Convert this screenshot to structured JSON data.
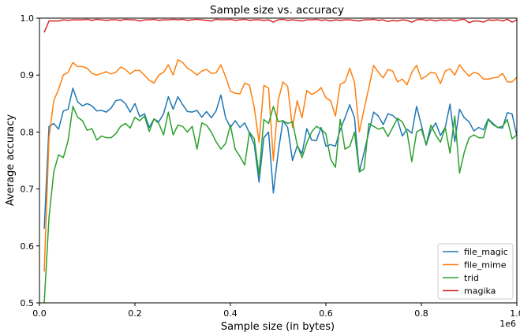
{
  "chart_data": {
    "type": "line",
    "title": "Sample size vs. accuracy",
    "xlabel": "Sample size (in bytes)",
    "ylabel": "Average accuracy",
    "x_offset_label": "1e6",
    "xlim": [
      0,
      1.0
    ],
    "ylim": [
      0.5,
      1.0
    ],
    "x_ticks": [
      0.0,
      0.2,
      0.4,
      0.6,
      0.8,
      1.0
    ],
    "x_tick_labels": [
      "0.0",
      "0.2",
      "0.4",
      "0.6",
      "0.8",
      "1.0"
    ],
    "y_ticks": [
      0.5,
      0.6,
      0.7,
      0.8,
      0.9,
      1.0
    ],
    "y_tick_labels": [
      "0.5",
      "0.6",
      "0.7",
      "0.8",
      "0.9",
      "1.0"
    ],
    "grid": false,
    "legend_position": "bottom-right",
    "x": [
      0.01,
      0.02,
      0.03,
      0.04,
      0.05,
      0.06,
      0.07,
      0.08,
      0.09,
      0.1,
      0.11,
      0.12,
      0.13,
      0.14,
      0.15,
      0.16,
      0.17,
      0.18,
      0.19,
      0.2,
      0.21,
      0.22,
      0.23,
      0.24,
      0.25,
      0.26,
      0.27,
      0.28,
      0.29,
      0.3,
      0.31,
      0.32,
      0.33,
      0.34,
      0.35,
      0.36,
      0.37,
      0.38,
      0.39,
      0.4,
      0.41,
      0.42,
      0.43,
      0.44,
      0.45,
      0.46,
      0.47,
      0.48,
      0.49,
      0.5,
      0.51,
      0.52,
      0.53,
      0.54,
      0.55,
      0.56,
      0.57,
      0.58,
      0.59,
      0.6,
      0.61,
      0.62,
      0.63,
      0.64,
      0.65,
      0.66,
      0.67,
      0.68,
      0.69,
      0.7,
      0.71,
      0.72,
      0.73,
      0.74,
      0.75,
      0.76,
      0.77,
      0.78,
      0.79,
      0.8,
      0.81,
      0.82,
      0.83,
      0.84,
      0.85,
      0.86,
      0.87,
      0.88,
      0.89,
      0.9,
      0.91,
      0.92,
      0.93,
      0.94,
      0.95,
      0.96,
      0.97,
      0.98,
      0.99,
      1.0
    ],
    "series": [
      {
        "name": "file_magic",
        "color": "#1f77b4",
        "values": [
          0.63,
          0.81,
          0.815,
          0.805,
          0.837,
          0.84,
          0.877,
          0.853,
          0.846,
          0.85,
          0.846,
          0.837,
          0.838,
          0.835,
          0.842,
          0.855,
          0.857,
          0.85,
          0.835,
          0.85,
          0.827,
          0.832,
          0.808,
          0.823,
          0.818,
          0.832,
          0.862,
          0.84,
          0.862,
          0.848,
          0.836,
          0.835,
          0.838,
          0.826,
          0.836,
          0.825,
          0.837,
          0.865,
          0.825,
          0.808,
          0.82,
          0.808,
          0.816,
          0.798,
          0.778,
          0.712,
          0.79,
          0.8,
          0.693,
          0.764,
          0.82,
          0.808,
          0.75,
          0.776,
          0.762,
          0.806,
          0.786,
          0.785,
          0.808,
          0.775,
          0.778,
          0.775,
          0.804,
          0.825,
          0.848,
          0.825,
          0.73,
          0.764,
          0.8,
          0.835,
          0.828,
          0.813,
          0.832,
          0.829,
          0.822,
          0.793,
          0.805,
          0.798,
          0.845,
          0.812,
          0.777,
          0.803,
          0.816,
          0.794,
          0.808,
          0.849,
          0.783,
          0.84,
          0.825,
          0.818,
          0.802,
          0.808,
          0.804,
          0.823,
          0.815,
          0.808,
          0.807,
          0.834,
          0.832,
          0.793
        ]
      },
      {
        "name": "file_mime",
        "color": "#ff7f0e",
        "values": [
          0.555,
          0.79,
          0.855,
          0.875,
          0.9,
          0.905,
          0.922,
          0.915,
          0.915,
          0.912,
          0.903,
          0.9,
          0.903,
          0.906,
          0.902,
          0.905,
          0.914,
          0.91,
          0.902,
          0.908,
          0.908,
          0.9,
          0.891,
          0.886,
          0.9,
          0.905,
          0.918,
          0.9,
          0.927,
          0.922,
          0.912,
          0.907,
          0.9,
          0.907,
          0.91,
          0.903,
          0.904,
          0.918,
          0.897,
          0.872,
          0.868,
          0.867,
          0.886,
          0.882,
          0.843,
          0.782,
          0.882,
          0.877,
          0.75,
          0.855,
          0.888,
          0.88,
          0.808,
          0.855,
          0.825,
          0.873,
          0.866,
          0.87,
          0.878,
          0.86,
          0.855,
          0.828,
          0.884,
          0.888,
          0.912,
          0.887,
          0.8,
          0.84,
          0.878,
          0.917,
          0.905,
          0.895,
          0.91,
          0.907,
          0.888,
          0.893,
          0.883,
          0.905,
          0.917,
          0.893,
          0.898,
          0.905,
          0.903,
          0.885,
          0.907,
          0.911,
          0.9,
          0.918,
          0.907,
          0.898,
          0.905,
          0.902,
          0.893,
          0.893,
          0.895,
          0.896,
          0.903,
          0.888,
          0.888,
          0.896
        ]
      },
      {
        "name": "trid",
        "color": "#2ca02c",
        "values": [
          0.5,
          0.65,
          0.73,
          0.76,
          0.755,
          0.785,
          0.845,
          0.826,
          0.82,
          0.803,
          0.806,
          0.786,
          0.793,
          0.79,
          0.79,
          0.797,
          0.81,
          0.815,
          0.807,
          0.826,
          0.82,
          0.828,
          0.801,
          0.823,
          0.815,
          0.795,
          0.835,
          0.795,
          0.812,
          0.81,
          0.8,
          0.81,
          0.77,
          0.816,
          0.812,
          0.8,
          0.783,
          0.77,
          0.78,
          0.812,
          0.77,
          0.757,
          0.742,
          0.8,
          0.788,
          0.725,
          0.822,
          0.815,
          0.845,
          0.818,
          0.82,
          0.815,
          0.818,
          0.777,
          0.755,
          0.781,
          0.8,
          0.81,
          0.805,
          0.797,
          0.752,
          0.738,
          0.822,
          0.77,
          0.775,
          0.8,
          0.73,
          0.735,
          0.815,
          0.81,
          0.805,
          0.808,
          0.792,
          0.808,
          0.824,
          0.818,
          0.8,
          0.748,
          0.8,
          0.805,
          0.778,
          0.812,
          0.795,
          0.782,
          0.808,
          0.763,
          0.828,
          0.728,
          0.765,
          0.79,
          0.795,
          0.79,
          0.79,
          0.822,
          0.813,
          0.808,
          0.81,
          0.822,
          0.788,
          0.795
        ]
      },
      {
        "name": "magika",
        "color": "#d62728",
        "values": [
          0.975,
          0.995,
          0.995,
          0.995,
          0.997,
          0.996,
          0.997,
          0.997,
          0.997,
          0.998,
          0.996,
          0.998,
          0.997,
          0.996,
          0.997,
          0.997,
          0.996,
          0.998,
          0.997,
          0.997,
          0.995,
          0.997,
          0.997,
          0.998,
          0.996,
          0.997,
          0.997,
          0.998,
          0.997,
          0.998,
          0.996,
          0.997,
          0.998,
          0.997,
          0.996,
          0.995,
          0.998,
          0.997,
          0.997,
          0.998,
          0.996,
          0.997,
          0.998,
          0.996,
          0.997,
          0.997,
          0.996,
          0.997,
          0.993,
          0.997,
          0.998,
          0.996,
          0.997,
          0.996,
          0.995,
          0.997,
          0.997,
          0.998,
          0.996,
          0.997,
          0.995,
          0.997,
          0.996,
          0.997,
          0.997,
          0.996,
          0.995,
          0.997,
          0.997,
          0.998,
          0.996,
          0.997,
          0.994,
          0.996,
          0.995,
          0.997,
          0.996,
          0.993,
          0.997,
          0.998,
          0.996,
          0.997,
          0.995,
          0.997,
          0.996,
          0.997,
          0.995,
          0.997,
          0.998,
          0.992,
          0.995,
          0.995,
          0.993,
          0.997,
          0.996,
          0.997,
          0.995,
          0.998,
          0.993,
          0.997
        ]
      }
    ]
  }
}
